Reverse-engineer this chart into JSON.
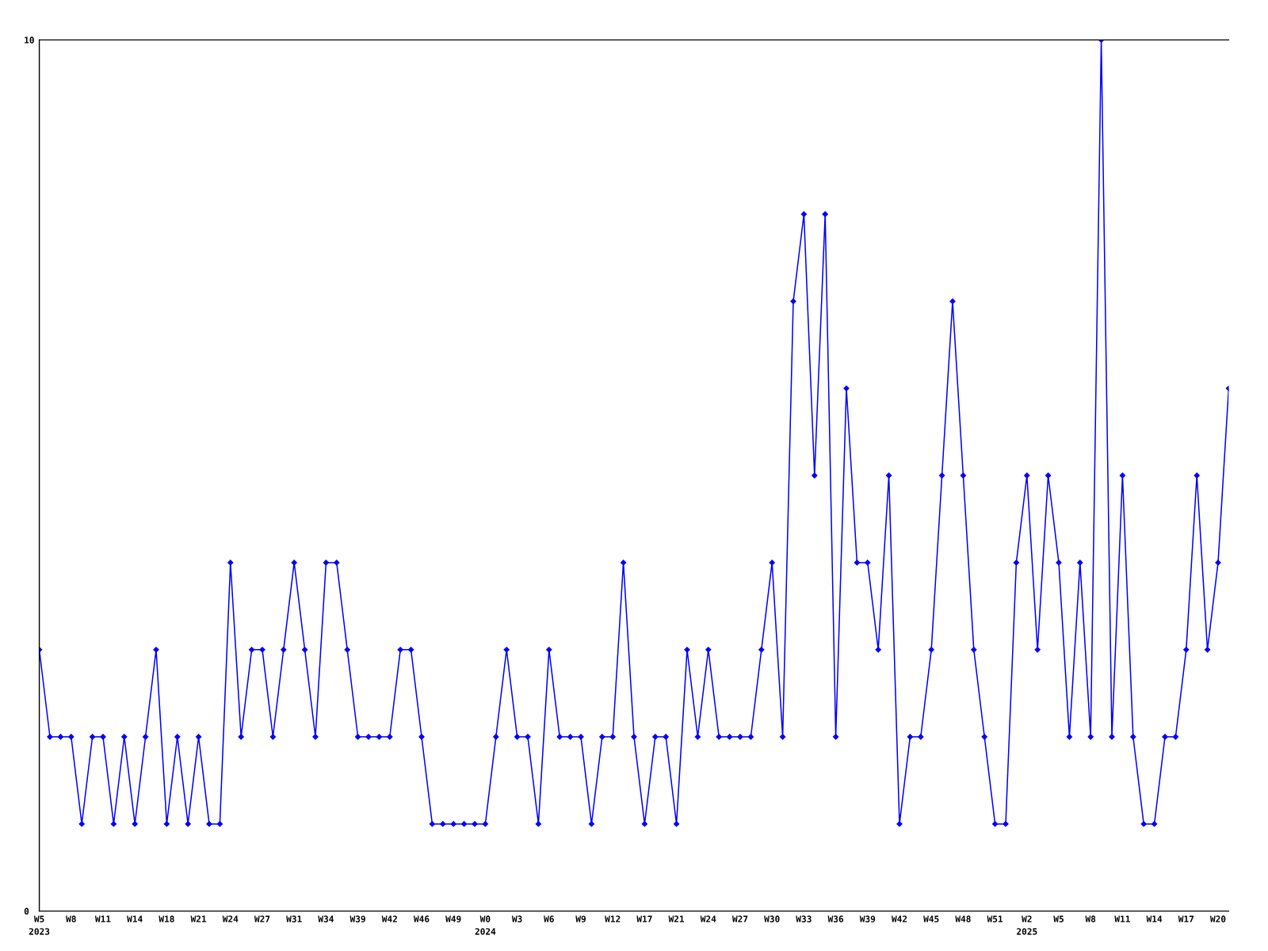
{
  "chart_data": {
    "type": "line",
    "categories": [
      "W5\n2023",
      null,
      null,
      "W8",
      null,
      null,
      "W11",
      null,
      null,
      "W14",
      null,
      null,
      "W18",
      null,
      null,
      "W21",
      null,
      null,
      "W24",
      null,
      null,
      "W27",
      null,
      null,
      "W31",
      null,
      null,
      "W34",
      null,
      null,
      "W39",
      null,
      null,
      "W42",
      null,
      null,
      "W46",
      null,
      null,
      "W49",
      null,
      null,
      "W0\n2024",
      null,
      null,
      "W3",
      null,
      null,
      "W6",
      null,
      null,
      "W9",
      null,
      null,
      "W12",
      null,
      null,
      "W17",
      null,
      null,
      "W21",
      null,
      null,
      "W24",
      null,
      null,
      "W27",
      null,
      null,
      "W30",
      null,
      null,
      "W33",
      null,
      null,
      "W36",
      null,
      null,
      "W39",
      null,
      null,
      "W42",
      null,
      null,
      "W45",
      null,
      null,
      "W48",
      null,
      null,
      "W51",
      null,
      null,
      "W2\n2025",
      null,
      null,
      "W5",
      null,
      null,
      "W8",
      null,
      null,
      "W11",
      null,
      null,
      "W14",
      null,
      null,
      "W17",
      null,
      null,
      "W20",
      null
    ],
    "series": [
      {
        "color": "#0000ff",
        "values": [
          3,
          2,
          2,
          2,
          1,
          2,
          2,
          1,
          2,
          1,
          2,
          3,
          1,
          2,
          1,
          2,
          1,
          1,
          4,
          2,
          3,
          3,
          2,
          3,
          4,
          3,
          2,
          4,
          4,
          3,
          2,
          2,
          2,
          2,
          3,
          3,
          2,
          1,
          1,
          1,
          1,
          1,
          1,
          2,
          3,
          2,
          2,
          1,
          3,
          2,
          2,
          2,
          1,
          2,
          2,
          4,
          2,
          1,
          2,
          2,
          1,
          3,
          2,
          3,
          2,
          2,
          2,
          2,
          3,
          4,
          2,
          7,
          8,
          5,
          8,
          2,
          6,
          4,
          4,
          3,
          5,
          1,
          2,
          2,
          3,
          5,
          7,
          5,
          3,
          2,
          1,
          1,
          4,
          5,
          3,
          5,
          4,
          2,
          4,
          2,
          10,
          2,
          5,
          2,
          1,
          1,
          2,
          2,
          3,
          5,
          3,
          4,
          6
        ]
      }
    ],
    "ylim": [
      0,
      10
    ],
    "yticks": [
      0,
      10
    ],
    "grid": false,
    "marker": "diamond",
    "line_style": "solid"
  }
}
